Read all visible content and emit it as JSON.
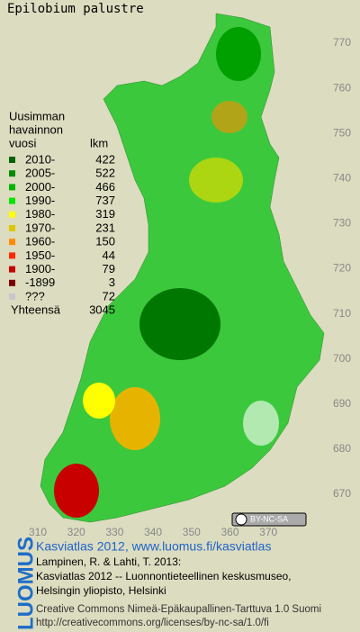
{
  "title": "Epilobium palustre",
  "map": {
    "xticks": [
      310,
      320,
      330,
      340,
      350,
      360,
      370
    ],
    "yticks": [
      770,
      760,
      750,
      740,
      730,
      720,
      710,
      700,
      690,
      680,
      670
    ]
  },
  "legend": {
    "heading": [
      "Uusimman",
      "havainnon",
      "vuosi"
    ],
    "count_heading": "lkm",
    "items": [
      {
        "label": "2010-",
        "count": 422,
        "color": "#006400"
      },
      {
        "label": "2005-",
        "count": 522,
        "color": "#008c00"
      },
      {
        "label": "2000-",
        "count": 466,
        "color": "#00b400"
      },
      {
        "label": "1990-",
        "count": 737,
        "color": "#00e600"
      },
      {
        "label": "1980-",
        "count": 319,
        "color": "#ffff00"
      },
      {
        "label": "1970-",
        "count": 231,
        "color": "#dcc800"
      },
      {
        "label": "1960-",
        "count": 150,
        "color": "#ff8c00"
      },
      {
        "label": "1950-",
        "count": 44,
        "color": "#ff2800"
      },
      {
        "label": "1900-",
        "count": 79,
        "color": "#c80000"
      },
      {
        "label": "-1899",
        "count": 3,
        "color": "#780000"
      },
      {
        "label": "???",
        "count": 72,
        "color": "#c8c8c8"
      }
    ],
    "total_label": "Yhteensä",
    "total": 3045
  },
  "badge": "BY-NC-SA",
  "logo": "LUOMUS",
  "credits": {
    "link": "Kasviatlas 2012, www.luomus.fi/kasviatlas",
    "lines": [
      "Lampinen, R. & Lahti, T. 2013:",
      "Kasviatlas 2012 -- Luonnontieteellinen keskusmuseo,",
      "Helsingin yliopisto, Helsinki"
    ],
    "license": [
      "Creative Commons Nimeä-Epäkaupallinen-Tarttuva 1.0 Suomi",
      "http://creativecommons.org/licenses/by-nc-sa/1.0/fi"
    ]
  }
}
